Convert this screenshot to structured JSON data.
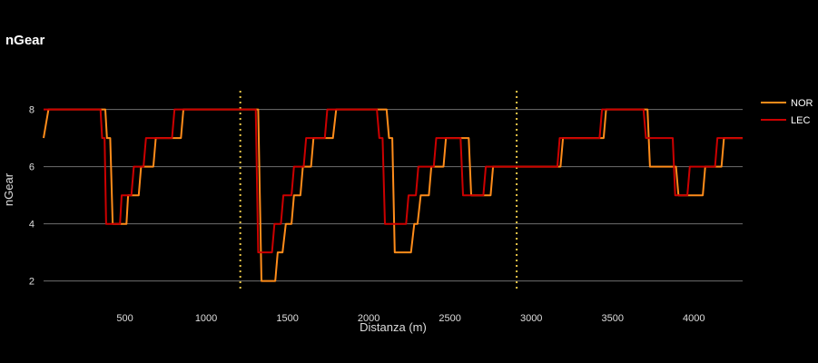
{
  "chart_data": {
    "type": "line",
    "title": "nGear",
    "xlabel": "Distanza (m)",
    "ylabel": "nGear",
    "xlim": [
      0,
      4300
    ],
    "ylim": [
      1.1,
      9.1
    ],
    "xticks": [
      500,
      1000,
      1500,
      2000,
      2500,
      3000,
      3500,
      4000
    ],
    "yticks": [
      2,
      4,
      6,
      8
    ],
    "grid": "horizontal",
    "legend": "right",
    "vlines": [
      {
        "x": 1210,
        "color": "#e8c547",
        "style": "dotted"
      },
      {
        "x": 2910,
        "color": "#e8c547",
        "style": "dotted"
      }
    ],
    "series": [
      {
        "name": "NOR",
        "color": "#ff8c1a",
        "points": [
          [
            0,
            7
          ],
          [
            30,
            8
          ],
          [
            380,
            8
          ],
          [
            390,
            7
          ],
          [
            410,
            7
          ],
          [
            425,
            4
          ],
          [
            510,
            4
          ],
          [
            520,
            5
          ],
          [
            585,
            5
          ],
          [
            600,
            6
          ],
          [
            675,
            6
          ],
          [
            690,
            7
          ],
          [
            845,
            7
          ],
          [
            860,
            8
          ],
          [
            1320,
            8
          ],
          [
            1340,
            2
          ],
          [
            1425,
            2
          ],
          [
            1440,
            3
          ],
          [
            1470,
            3
          ],
          [
            1490,
            4
          ],
          [
            1525,
            4
          ],
          [
            1540,
            5
          ],
          [
            1580,
            5
          ],
          [
            1595,
            6
          ],
          [
            1645,
            6
          ],
          [
            1660,
            7
          ],
          [
            1780,
            7
          ],
          [
            1800,
            8
          ],
          [
            2110,
            8
          ],
          [
            2125,
            7
          ],
          [
            2145,
            7
          ],
          [
            2160,
            3
          ],
          [
            2260,
            3
          ],
          [
            2280,
            4
          ],
          [
            2300,
            4
          ],
          [
            2320,
            5
          ],
          [
            2370,
            5
          ],
          [
            2385,
            6
          ],
          [
            2460,
            6
          ],
          [
            2475,
            7
          ],
          [
            2615,
            7
          ],
          [
            2630,
            5
          ],
          [
            2750,
            5
          ],
          [
            2765,
            6
          ],
          [
            3180,
            6
          ],
          [
            3195,
            7
          ],
          [
            3445,
            7
          ],
          [
            3460,
            8
          ],
          [
            3715,
            8
          ],
          [
            3730,
            6
          ],
          [
            3890,
            6
          ],
          [
            3905,
            5
          ],
          [
            4055,
            5
          ],
          [
            4070,
            6
          ],
          [
            4170,
            6
          ],
          [
            4185,
            7
          ],
          [
            4300,
            7
          ]
        ]
      },
      {
        "name": "LEC",
        "color": "#cc0000",
        "points": [
          [
            0,
            8
          ],
          [
            350,
            8
          ],
          [
            360,
            7
          ],
          [
            375,
            7
          ],
          [
            385,
            4
          ],
          [
            470,
            4
          ],
          [
            480,
            5
          ],
          [
            540,
            5
          ],
          [
            555,
            6
          ],
          [
            615,
            6
          ],
          [
            630,
            7
          ],
          [
            790,
            7
          ],
          [
            805,
            8
          ],
          [
            1305,
            8
          ],
          [
            1320,
            3
          ],
          [
            1405,
            3
          ],
          [
            1420,
            4
          ],
          [
            1460,
            4
          ],
          [
            1475,
            5
          ],
          [
            1525,
            5
          ],
          [
            1540,
            6
          ],
          [
            1600,
            6
          ],
          [
            1615,
            7
          ],
          [
            1730,
            7
          ],
          [
            1745,
            8
          ],
          [
            2050,
            8
          ],
          [
            2065,
            7
          ],
          [
            2085,
            7
          ],
          [
            2100,
            4
          ],
          [
            2230,
            4
          ],
          [
            2245,
            5
          ],
          [
            2290,
            5
          ],
          [
            2305,
            6
          ],
          [
            2400,
            6
          ],
          [
            2415,
            7
          ],
          [
            2565,
            7
          ],
          [
            2580,
            5
          ],
          [
            2705,
            5
          ],
          [
            2720,
            6
          ],
          [
            3160,
            6
          ],
          [
            3175,
            7
          ],
          [
            3420,
            7
          ],
          [
            3435,
            8
          ],
          [
            3690,
            8
          ],
          [
            3705,
            7
          ],
          [
            3870,
            7
          ],
          [
            3885,
            5
          ],
          [
            3960,
            5
          ],
          [
            3975,
            6
          ],
          [
            4130,
            6
          ],
          [
            4145,
            7
          ],
          [
            4300,
            7
          ]
        ]
      }
    ]
  }
}
